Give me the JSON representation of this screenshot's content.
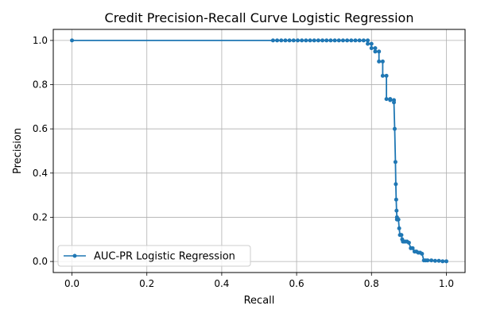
{
  "chart_data": {
    "type": "line",
    "title": "Credit Precision-Recall Curve Logistic Regression",
    "xlabel": "Recall",
    "ylabel": "Precision",
    "xlim": [
      -0.05,
      1.05
    ],
    "ylim": [
      -0.05,
      1.05
    ],
    "xticks": [
      0.0,
      0.2,
      0.4,
      0.6,
      0.8,
      1.0
    ],
    "yticks": [
      0.0,
      0.2,
      0.4,
      0.6,
      0.8,
      1.0
    ],
    "xtick_labels": [
      "0.0",
      "0.2",
      "0.4",
      "0.6",
      "0.8",
      "1.0"
    ],
    "ytick_labels": [
      "0.0",
      "0.2",
      "0.4",
      "0.6",
      "0.8",
      "1.0"
    ],
    "grid": true,
    "legend_position": "lower-left",
    "series": [
      {
        "name": "AUC-PR Logistic Regression",
        "color": "#1f77b4",
        "marker": "dot",
        "x": [
          0.0,
          0.537,
          0.548,
          0.559,
          0.57,
          0.581,
          0.592,
          0.603,
          0.614,
          0.625,
          0.636,
          0.647,
          0.658,
          0.669,
          0.68,
          0.691,
          0.702,
          0.713,
          0.724,
          0.735,
          0.746,
          0.757,
          0.768,
          0.779,
          0.79,
          0.79,
          0.8,
          0.8,
          0.81,
          0.81,
          0.82,
          0.82,
          0.83,
          0.83,
          0.84,
          0.84,
          0.85,
          0.85,
          0.86,
          0.86,
          0.862,
          0.864,
          0.865,
          0.866,
          0.867,
          0.868,
          0.868,
          0.87,
          0.872,
          0.874,
          0.876,
          0.878,
          0.88,
          0.882,
          0.884,
          0.886,
          0.89,
          0.895,
          0.9,
          0.905,
          0.91,
          0.915,
          0.92,
          0.925,
          0.93,
          0.935,
          0.94,
          0.945,
          0.95,
          0.96,
          0.97,
          0.98,
          0.99,
          1.0
        ],
        "y": [
          1.0,
          1.0,
          1.0,
          1.0,
          1.0,
          1.0,
          1.0,
          1.0,
          1.0,
          1.0,
          1.0,
          1.0,
          1.0,
          1.0,
          1.0,
          1.0,
          1.0,
          1.0,
          1.0,
          1.0,
          1.0,
          1.0,
          1.0,
          1.0,
          1.0,
          0.985,
          0.985,
          0.965,
          0.965,
          0.95,
          0.95,
          0.905,
          0.905,
          0.84,
          0.84,
          0.735,
          0.735,
          0.73,
          0.73,
          0.72,
          0.6,
          0.45,
          0.35,
          0.28,
          0.23,
          0.2,
          0.19,
          0.19,
          0.19,
          0.15,
          0.12,
          0.12,
          0.12,
          0.1,
          0.09,
          0.09,
          0.09,
          0.09,
          0.085,
          0.06,
          0.06,
          0.045,
          0.045,
          0.04,
          0.04,
          0.035,
          0.005,
          0.005,
          0.005,
          0.005,
          0.003,
          0.003,
          0.001,
          0.001
        ]
      }
    ]
  }
}
